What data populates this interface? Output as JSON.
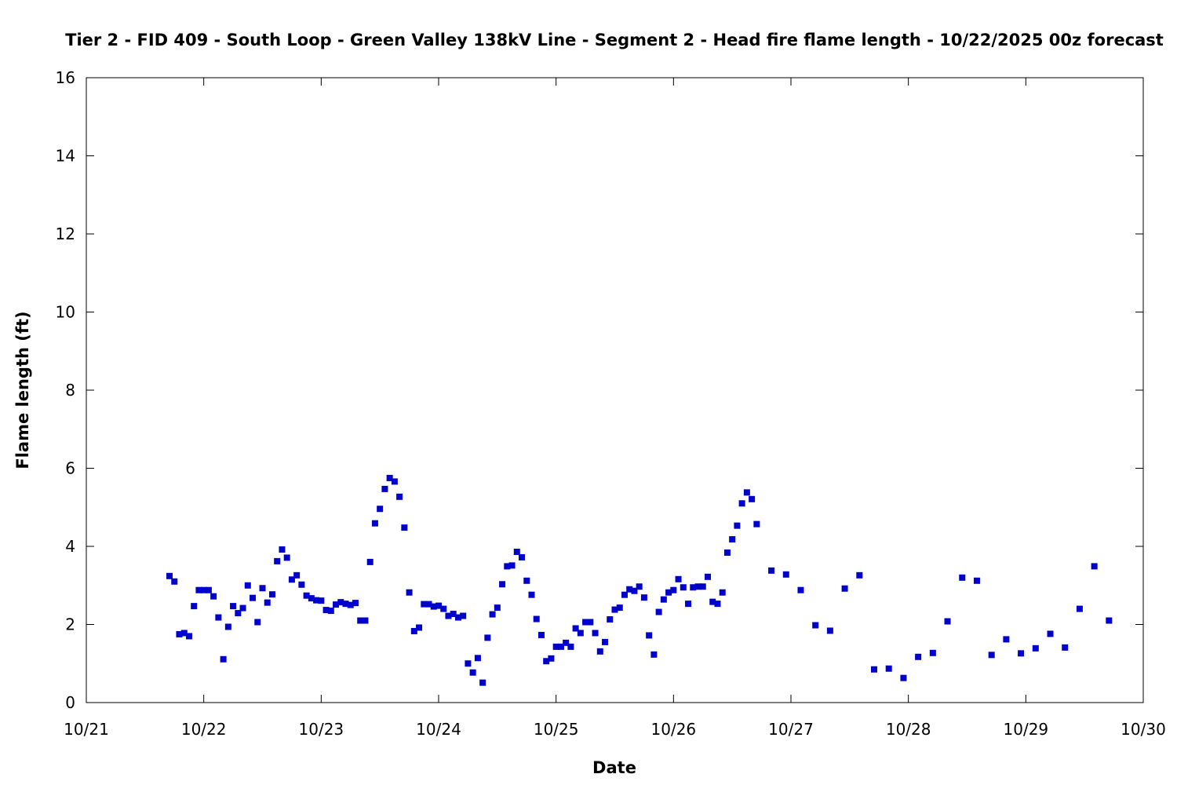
{
  "chart_data": {
    "type": "scatter",
    "title": "Tier 2 - FID 409 - South Loop - Green Valley 138kV Line - Segment 2 - Head fire flame length - 10/22/2025 00z forecast",
    "xlabel": "Date",
    "ylabel": "Flame length (ft)",
    "xlim": [
      "10/21",
      "10/30"
    ],
    "ylim": [
      0,
      16
    ],
    "x_ticks": [
      "10/21",
      "10/22",
      "10/23",
      "10/24",
      "10/25",
      "10/26",
      "10/27",
      "10/28",
      "10/29",
      "10/30"
    ],
    "y_ticks": [
      0,
      2,
      4,
      6,
      8,
      10,
      12,
      14,
      16
    ],
    "grid": false,
    "legend": "none",
    "marker": "square",
    "color": "#0000cc",
    "series": [
      {
        "points": [
          [
            "2025-10-21T17:00",
            3.24
          ],
          [
            "2025-10-21T18:00",
            3.1
          ],
          [
            "2025-10-21T19:00",
            1.75
          ],
          [
            "2025-10-21T20:00",
            1.78
          ],
          [
            "2025-10-21T21:00",
            1.7
          ],
          [
            "2025-10-21T22:00",
            2.47
          ],
          [
            "2025-10-21T23:00",
            2.88
          ],
          [
            "2025-10-22T00:00",
            2.88
          ],
          [
            "2025-10-22T01:00",
            2.88
          ],
          [
            "2025-10-22T02:00",
            2.72
          ],
          [
            "2025-10-22T03:00",
            2.18
          ],
          [
            "2025-10-22T04:00",
            1.11
          ],
          [
            "2025-10-22T05:00",
            1.94
          ],
          [
            "2025-10-22T06:00",
            2.47
          ],
          [
            "2025-10-22T07:00",
            2.29
          ],
          [
            "2025-10-22T08:00",
            2.42
          ],
          [
            "2025-10-22T09:00",
            3.0
          ],
          [
            "2025-10-22T10:00",
            2.68
          ],
          [
            "2025-10-22T11:00",
            2.06
          ],
          [
            "2025-10-22T12:00",
            2.93
          ],
          [
            "2025-10-22T13:00",
            2.56
          ],
          [
            "2025-10-22T14:00",
            2.77
          ],
          [
            "2025-10-22T15:00",
            3.62
          ],
          [
            "2025-10-22T16:00",
            3.92
          ],
          [
            "2025-10-22T17:00",
            3.71
          ],
          [
            "2025-10-22T18:00",
            3.15
          ],
          [
            "2025-10-22T19:00",
            3.26
          ],
          [
            "2025-10-22T20:00",
            3.02
          ],
          [
            "2025-10-22T21:00",
            2.74
          ],
          [
            "2025-10-22T22:00",
            2.67
          ],
          [
            "2025-10-22T23:00",
            2.62
          ],
          [
            "2025-10-23T00:00",
            2.61
          ],
          [
            "2025-10-23T01:00",
            2.37
          ],
          [
            "2025-10-23T02:00",
            2.35
          ],
          [
            "2025-10-23T03:00",
            2.51
          ],
          [
            "2025-10-23T04:00",
            2.57
          ],
          [
            "2025-10-23T05:00",
            2.53
          ],
          [
            "2025-10-23T06:00",
            2.5
          ],
          [
            "2025-10-23T07:00",
            2.55
          ],
          [
            "2025-10-23T08:00",
            2.1
          ],
          [
            "2025-10-23T09:00",
            2.1
          ],
          [
            "2025-10-23T10:00",
            3.6
          ],
          [
            "2025-10-23T11:00",
            4.59
          ],
          [
            "2025-10-23T12:00",
            4.96
          ],
          [
            "2025-10-23T13:00",
            5.47
          ],
          [
            "2025-10-23T14:00",
            5.75
          ],
          [
            "2025-10-23T15:00",
            5.66
          ],
          [
            "2025-10-23T16:00",
            5.27
          ],
          [
            "2025-10-23T17:00",
            4.48
          ],
          [
            "2025-10-23T18:00",
            2.82
          ],
          [
            "2025-10-23T19:00",
            1.83
          ],
          [
            "2025-10-23T20:00",
            1.92
          ],
          [
            "2025-10-23T21:00",
            2.52
          ],
          [
            "2025-10-23T22:00",
            2.52
          ],
          [
            "2025-10-23T23:00",
            2.46
          ],
          [
            "2025-10-24T00:00",
            2.48
          ],
          [
            "2025-10-24T01:00",
            2.4
          ],
          [
            "2025-10-24T02:00",
            2.22
          ],
          [
            "2025-10-24T03:00",
            2.27
          ],
          [
            "2025-10-24T04:00",
            2.18
          ],
          [
            "2025-10-24T05:00",
            2.22
          ],
          [
            "2025-10-24T06:00",
            1.0
          ],
          [
            "2025-10-24T07:00",
            0.77
          ],
          [
            "2025-10-24T08:00",
            1.14
          ],
          [
            "2025-10-24T09:00",
            0.51
          ],
          [
            "2025-10-24T10:00",
            1.66
          ],
          [
            "2025-10-24T11:00",
            2.26
          ],
          [
            "2025-10-24T12:00",
            2.43
          ],
          [
            "2025-10-24T13:00",
            3.03
          ],
          [
            "2025-10-24T14:00",
            3.49
          ],
          [
            "2025-10-24T15:00",
            3.51
          ],
          [
            "2025-10-24T16:00",
            3.86
          ],
          [
            "2025-10-24T17:00",
            3.72
          ],
          [
            "2025-10-24T18:00",
            3.12
          ],
          [
            "2025-10-24T19:00",
            2.76
          ],
          [
            "2025-10-24T20:00",
            2.14
          ],
          [
            "2025-10-24T21:00",
            1.73
          ],
          [
            "2025-10-24T22:00",
            1.06
          ],
          [
            "2025-10-24T23:00",
            1.13
          ],
          [
            "2025-10-25T00:00",
            1.43
          ],
          [
            "2025-10-25T01:00",
            1.43
          ],
          [
            "2025-10-25T02:00",
            1.53
          ],
          [
            "2025-10-25T03:00",
            1.43
          ],
          [
            "2025-10-25T04:00",
            1.9
          ],
          [
            "2025-10-25T05:00",
            1.78
          ],
          [
            "2025-10-25T06:00",
            2.06
          ],
          [
            "2025-10-25T07:00",
            2.06
          ],
          [
            "2025-10-25T08:00",
            1.78
          ],
          [
            "2025-10-25T09:00",
            1.31
          ],
          [
            "2025-10-25T10:00",
            1.55
          ],
          [
            "2025-10-25T11:00",
            2.13
          ],
          [
            "2025-10-25T12:00",
            2.38
          ],
          [
            "2025-10-25T13:00",
            2.43
          ],
          [
            "2025-10-25T14:00",
            2.76
          ],
          [
            "2025-10-25T15:00",
            2.9
          ],
          [
            "2025-10-25T16:00",
            2.86
          ],
          [
            "2025-10-25T17:00",
            2.97
          ],
          [
            "2025-10-25T18:00",
            2.69
          ],
          [
            "2025-10-25T19:00",
            1.72
          ],
          [
            "2025-10-25T20:00",
            1.23
          ],
          [
            "2025-10-25T21:00",
            2.32
          ],
          [
            "2025-10-25T22:00",
            2.64
          ],
          [
            "2025-10-25T23:00",
            2.82
          ],
          [
            "2025-10-26T00:00",
            2.88
          ],
          [
            "2025-10-26T01:00",
            3.16
          ],
          [
            "2025-10-26T02:00",
            2.95
          ],
          [
            "2025-10-26T03:00",
            2.53
          ],
          [
            "2025-10-26T04:00",
            2.95
          ],
          [
            "2025-10-26T05:00",
            2.97
          ],
          [
            "2025-10-26T06:00",
            2.97
          ],
          [
            "2025-10-26T07:00",
            3.22
          ],
          [
            "2025-10-26T08:00",
            2.58
          ],
          [
            "2025-10-26T09:00",
            2.53
          ],
          [
            "2025-10-26T10:00",
            2.82
          ],
          [
            "2025-10-26T11:00",
            3.84
          ],
          [
            "2025-10-26T12:00",
            4.18
          ],
          [
            "2025-10-26T13:00",
            4.53
          ],
          [
            "2025-10-26T14:00",
            5.1
          ],
          [
            "2025-10-26T15:00",
            5.38
          ],
          [
            "2025-10-26T16:00",
            5.21
          ],
          [
            "2025-10-26T17:00",
            4.57
          ],
          [
            "2025-10-26T20:00",
            3.38
          ],
          [
            "2025-10-26T23:00",
            3.28
          ],
          [
            "2025-10-27T02:00",
            2.88
          ],
          [
            "2025-10-27T05:00",
            1.98
          ],
          [
            "2025-10-27T08:00",
            1.84
          ],
          [
            "2025-10-27T11:00",
            2.92
          ],
          [
            "2025-10-27T14:00",
            3.26
          ],
          [
            "2025-10-27T17:00",
            0.85
          ],
          [
            "2025-10-27T20:00",
            0.87
          ],
          [
            "2025-10-27T23:00",
            0.63
          ],
          [
            "2025-10-28T02:00",
            1.17
          ],
          [
            "2025-10-28T05:00",
            1.27
          ],
          [
            "2025-10-28T08:00",
            2.08
          ],
          [
            "2025-10-28T11:00",
            3.2
          ],
          [
            "2025-10-28T14:00",
            3.12
          ],
          [
            "2025-10-28T17:00",
            1.22
          ],
          [
            "2025-10-28T20:00",
            1.62
          ],
          [
            "2025-10-28T23:00",
            1.26
          ],
          [
            "2025-10-29T02:00",
            1.39
          ],
          [
            "2025-10-29T05:00",
            1.76
          ],
          [
            "2025-10-29T08:00",
            1.41
          ],
          [
            "2025-10-29T11:00",
            2.4
          ],
          [
            "2025-10-29T14:00",
            3.49
          ],
          [
            "2025-10-29T17:00",
            2.1
          ]
        ]
      }
    ]
  }
}
